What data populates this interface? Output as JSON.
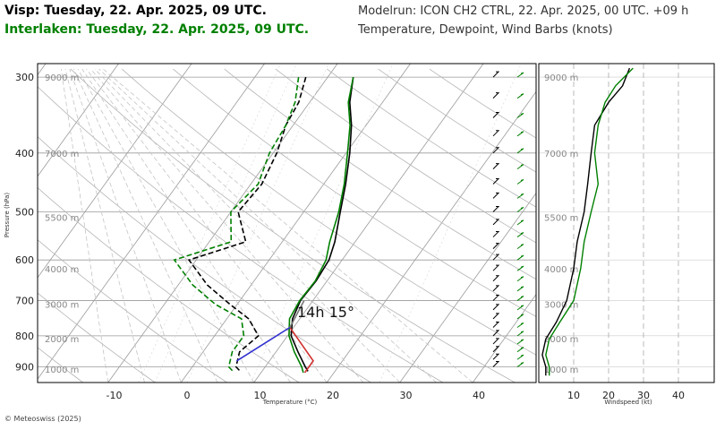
{
  "header": {
    "station1": "Visp: Tuesday, 22. Apr. 2025, 09 UTC.",
    "station2": "Interlaken: Tuesday, 22. Apr. 2025, 09 UTC.",
    "modelrun": "Modelrun: ICON CH2 CTRL, 22. Apr. 2025, 00 UTC. +09 h",
    "subtitle": "Temperature, Dewpoint, Wind Barbs (knots)"
  },
  "footer": {
    "credit": "© Meteoswiss (2025)"
  },
  "colors": {
    "station1": "#000000",
    "station2": "#008000",
    "parcel_dry": "#d03030",
    "parcel_dew": "#3030d0"
  },
  "chart_data": [
    {
      "type": "line",
      "name": "skew-t",
      "xlabel": "Temperature (°C)",
      "ylabel": "Pressure (hPa)",
      "x_ticks": [
        -10,
        0,
        10,
        20,
        30,
        40
      ],
      "y_ticks": [
        300,
        400,
        500,
        600,
        700,
        800,
        900
      ],
      "y_scale": "log",
      "ylim": [
        955,
        285
      ],
      "altitude_labels": [
        "9000 m",
        "7000 m",
        "5500 m",
        "4000 m",
        "3000 m",
        "2000 m",
        "1000 m"
      ],
      "altitude_levels": [
        300,
        400,
        510,
        620,
        710,
        808,
        908
      ],
      "annotation": "14h 15°",
      "series": [
        {
          "name": "Visp temperature",
          "color": "#000000",
          "style": "solid",
          "points": [
            [
              -6.5,
              300
            ],
            [
              -4.5,
              330
            ],
            [
              -2,
              360
            ],
            [
              0.5,
              400
            ],
            [
              3,
              450
            ],
            [
              5,
              500
            ],
            [
              7.2,
              560
            ],
            [
              8.2,
              600
            ],
            [
              8.5,
              650
            ],
            [
              8.3,
              700
            ],
            [
              9,
              750
            ],
            [
              10.5,
              800
            ],
            [
              13,
              850
            ],
            [
              15.5,
              900
            ],
            [
              16.3,
              915
            ]
          ]
        },
        {
          "name": "Visp dewpoint",
          "color": "#000000",
          "style": "dashed",
          "points": [
            [
              -13,
              300
            ],
            [
              -11.5,
              330
            ],
            [
              -11,
              360
            ],
            [
              -9.5,
              400
            ],
            [
              -8.5,
              450
            ],
            [
              -9,
              500
            ],
            [
              -5,
              560
            ],
            [
              -11,
              600
            ],
            [
              -6,
              660
            ],
            [
              -1,
              710
            ],
            [
              3,
              750
            ],
            [
              6,
              800
            ],
            [
              5,
              850
            ],
            [
              6,
              900
            ],
            [
              7,
              915
            ]
          ]
        },
        {
          "name": "Interlaken temperature",
          "color": "#008000",
          "style": "solid",
          "points": [
            [
              -6.5,
              300
            ],
            [
              -4.7,
              330
            ],
            [
              -2.2,
              360
            ],
            [
              0.2,
              400
            ],
            [
              2.8,
              450
            ],
            [
              4.8,
              500
            ],
            [
              6.5,
              560
            ],
            [
              7.8,
              600
            ],
            [
              8.4,
              650
            ],
            [
              8.2,
              700
            ],
            [
              8.6,
              750
            ],
            [
              10.2,
              800
            ],
            [
              12.5,
              850
            ],
            [
              15,
              900
            ],
            [
              15.8,
              920
            ]
          ]
        },
        {
          "name": "Interlaken dewpoint",
          "color": "#008000",
          "style": "dashed",
          "points": [
            [
              -14,
              300
            ],
            [
              -12,
              330
            ],
            [
              -11,
              360
            ],
            [
              -10.5,
              400
            ],
            [
              -9,
              450
            ],
            [
              -10,
              500
            ],
            [
              -7,
              560
            ],
            [
              -13,
              600
            ],
            [
              -8,
              660
            ],
            [
              -3,
              710
            ],
            [
              2,
              750
            ],
            [
              4,
              800
            ],
            [
              4,
              850
            ],
            [
              5,
              900
            ],
            [
              6,
              915
            ]
          ]
        },
        {
          "name": "Parcel dry adiabat",
          "color": "#d03030",
          "style": "solid",
          "points": [
            [
              16,
              920
            ],
            [
              16,
              880
            ],
            [
              9.5,
              775
            ]
          ]
        },
        {
          "name": "Parcel dewpoint",
          "color": "#3030d0",
          "style": "solid",
          "points": [
            [
              5.5,
              880
            ],
            [
              9.5,
              775
            ]
          ]
        },
        {
          "name": "Parcel moist",
          "color": "#777777",
          "style": "solid",
          "points": [
            [
              9.5,
              775
            ],
            [
              8.8,
              700
            ]
          ]
        }
      ]
    },
    {
      "type": "line",
      "name": "windspeed-profile",
      "xlabel": "Windspeed (kt)",
      "x_ticks": [
        10,
        20,
        30,
        40
      ],
      "xlim": [
        0,
        48
      ],
      "y_scale": "log",
      "ylim": [
        955,
        285
      ],
      "altitude_labels": [
        "9000 m",
        "7000 m",
        "5500 m",
        "4000 m",
        "3000 m",
        "2000 m",
        "1000 m"
      ],
      "altitude_levels": [
        300,
        400,
        510,
        620,
        710,
        808,
        908
      ],
      "series": [
        {
          "name": "Visp windspeed",
          "color": "#000000",
          "points": [
            [
              26,
              290
            ],
            [
              24,
              310
            ],
            [
              20,
              330
            ],
            [
              16,
              360
            ],
            [
              15,
              400
            ],
            [
              14,
              450
            ],
            [
              13,
              500
            ],
            [
              11,
              560
            ],
            [
              10,
              620
            ],
            [
              8,
              700
            ],
            [
              5,
              760
            ],
            [
              2,
              810
            ],
            [
              1,
              860
            ],
            [
              2,
              900
            ],
            [
              2,
              930
            ]
          ]
        },
        {
          "name": "Interlaken windspeed",
          "color": "#008000",
          "points": [
            [
              27,
              290
            ],
            [
              22,
              310
            ],
            [
              19,
              330
            ],
            [
              17,
              360
            ],
            [
              16,
              400
            ],
            [
              17,
              450
            ],
            [
              15,
              500
            ],
            [
              13,
              560
            ],
            [
              12,
              620
            ],
            [
              10,
              700
            ],
            [
              6,
              760
            ],
            [
              3,
              810
            ],
            [
              2,
              860
            ],
            [
              3,
              900
            ],
            [
              3,
              930
            ]
          ]
        }
      ]
    }
  ]
}
